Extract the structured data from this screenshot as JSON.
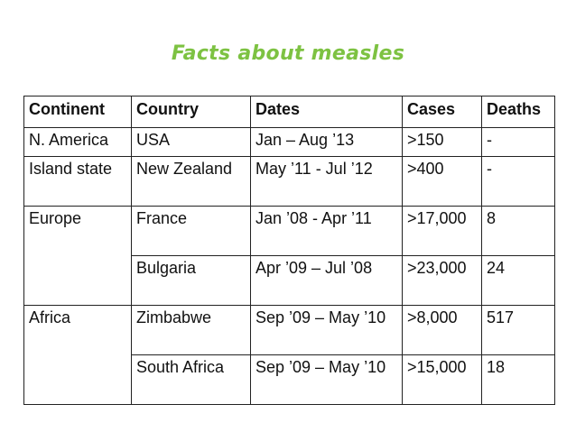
{
  "title": "Facts about measles",
  "table": {
    "headers": [
      "Continent",
      "Country",
      "Dates",
      "Cases",
      "Deaths"
    ],
    "rows": [
      {
        "continent": "N. America",
        "country": "USA",
        "dates": "Jan – Aug ’13",
        "cases": ">150",
        "deaths": "-"
      },
      {
        "continent": "Island state",
        "country": "New Zealand",
        "dates": "May ’11 - Jul ’12",
        "cases": ">400",
        "deaths": "-"
      },
      {
        "continent": "Europe",
        "country": "France",
        "dates": "Jan ’08 - Apr ’11",
        "cases": ">17,000",
        "deaths": "8"
      },
      {
        "continent": "",
        "country": "Bulgaria",
        "dates": "Apr ’09 – Jul ’08",
        "cases": ">23,000",
        "deaths": "24"
      },
      {
        "continent": "Africa",
        "country": "Zimbabwe",
        "dates": "Sep ’09 – May ’10",
        "cases": ">8,000",
        "deaths": "517"
      },
      {
        "continent": "",
        "country": "South Africa",
        "dates": "Sep ’09 – May ’10",
        "cases": ">15,000",
        "deaths": "18"
      }
    ]
  },
  "colors": {
    "title": "#7dc242",
    "text": "#111111",
    "border": "#222222"
  }
}
